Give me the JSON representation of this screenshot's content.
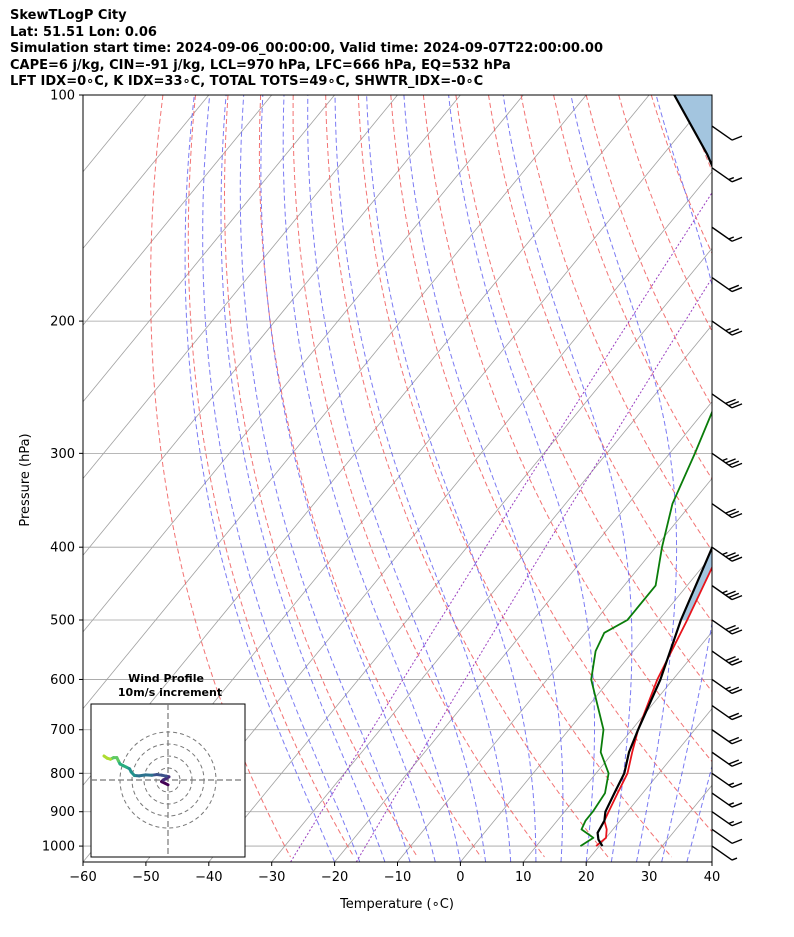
{
  "header": {
    "line1": "SkewTLogP City",
    "line2": "Lat: 51.51   Lon: 0.06",
    "line3": "Simulation start time: 2024-09-06_00:00:00, Valid time: 2024-09-07T22:00:00.00",
    "line4": "CAPE=6 j/kg, CIN=-91 j/kg, LCL=970 hPa, LFC=666 hPa, EQ=532 hPa",
    "line5": "LFT IDX=0∘C, K IDX=33∘C, TOTAL TOTS=49∘C, SHWTR_IDX=-0∘C"
  },
  "colors": {
    "temperature": "#e8141c",
    "dewpoint": "#0a7d0a",
    "parcel": "#000000",
    "cape_fill": "#a3c5df",
    "dry_adiabat": "#f05a5a",
    "moist_adiabat": "#5a5af0",
    "mixing_ratio": "#9a3fc0",
    "isotherm": "#a0a0a0"
  },
  "chart_data": {
    "type": "line",
    "xlabel": "Temperature (∘C)",
    "ylabel": "Pressure (hPa)",
    "xlim": [
      -60,
      40
    ],
    "ylim": [
      1050,
      100
    ],
    "x_ticks": [
      "−60",
      "−50",
      "−40",
      "−30",
      "−20",
      "−10",
      "0",
      "10",
      "20",
      "30",
      "40"
    ],
    "y_ticks": [
      100,
      200,
      300,
      400,
      500,
      600,
      700,
      800,
      900,
      1000
    ],
    "series": [
      {
        "key": "temperature",
        "points": [
          [
            19.5,
            1000
          ],
          [
            20,
            975
          ],
          [
            19,
            950
          ],
          [
            17.5,
            925
          ],
          [
            17,
            900
          ],
          [
            16,
            850
          ],
          [
            15,
            800
          ],
          [
            13,
            750
          ],
          [
            11,
            700
          ],
          [
            7.5,
            600
          ],
          [
            4.5,
            500
          ],
          [
            0.5,
            400
          ],
          [
            -3.5,
            350
          ],
          [
            -6,
            300
          ],
          [
            -9,
            260
          ],
          [
            -10.5,
            240
          ],
          [
            -11,
            230
          ],
          [
            -13,
            200
          ],
          [
            -14,
            190
          ],
          [
            -13,
            180
          ],
          [
            -11,
            160
          ],
          [
            -10,
            145
          ],
          [
            -12,
            130
          ],
          [
            -14,
            120
          ],
          [
            -13,
            110
          ],
          [
            -12,
            100
          ]
        ]
      },
      {
        "key": "dewpoint",
        "points": [
          [
            17,
            1000
          ],
          [
            18,
            975
          ],
          [
            15,
            950
          ],
          [
            14.5,
            925
          ],
          [
            14.5,
            900
          ],
          [
            14,
            850
          ],
          [
            12,
            800
          ],
          [
            8,
            750
          ],
          [
            5.5,
            700
          ],
          [
            -3,
            600
          ],
          [
            -6,
            550
          ],
          [
            -7,
            520
          ],
          [
            -5,
            500
          ],
          [
            -5,
            450
          ],
          [
            -9,
            400
          ],
          [
            -13,
            350
          ],
          [
            -16,
            300
          ],
          [
            -19,
            260
          ],
          [
            -22,
            240
          ],
          [
            -23,
            220
          ],
          [
            -23,
            200
          ],
          [
            -25.5,
            190
          ],
          [
            -30,
            182
          ],
          [
            -32.5,
            175
          ],
          [
            -35,
            160
          ],
          [
            -40,
            140
          ],
          [
            -46,
            120
          ],
          [
            -56,
            100
          ]
        ]
      },
      {
        "key": "parcel",
        "points": [
          [
            20.5,
            1000
          ],
          [
            19,
            980
          ],
          [
            18,
            960
          ],
          [
            17.5,
            925
          ],
          [
            16.5,
            900
          ],
          [
            15.5,
            850
          ],
          [
            14.5,
            800
          ],
          [
            12.5,
            750
          ],
          [
            11,
            700
          ],
          [
            8,
            600
          ],
          [
            3.5,
            500
          ],
          [
            -1,
            400
          ],
          [
            -4,
            350
          ],
          [
            -9,
            300
          ],
          [
            -15,
            260
          ],
          [
            -20,
            230
          ],
          [
            -25,
            200
          ],
          [
            -33,
            170
          ],
          [
            -43,
            140
          ],
          [
            -53,
            120
          ],
          [
            -66,
            100
          ]
        ]
      }
    ],
    "wind_barbs": {
      "pressures": [
        1000,
        950,
        900,
        850,
        800,
        750,
        700,
        650,
        600,
        550,
        500,
        450,
        400,
        350,
        300,
        250,
        200,
        175,
        150,
        125,
        110
      ],
      "speeds_kt": [
        5,
        10,
        15,
        15,
        15,
        20,
        20,
        20,
        25,
        30,
        30,
        35,
        35,
        30,
        35,
        30,
        25,
        20,
        15,
        15,
        10
      ]
    },
    "hodograph": {
      "title": "Wind Profile",
      "subtitle": "10m/s increment",
      "points": [
        [
          0,
          -1.5
        ],
        [
          -1,
          -1
        ],
        [
          -2,
          -0.5
        ],
        [
          -1.5,
          0
        ],
        [
          -0.5,
          0.5
        ],
        [
          0.3,
          1
        ],
        [
          -0.5,
          1.2
        ],
        [
          -2,
          1.5
        ],
        [
          -3.5,
          1.7
        ],
        [
          -5,
          1.5
        ],
        [
          -7,
          1.6
        ],
        [
          -9,
          1.3
        ],
        [
          -10.5,
          1.4
        ],
        [
          -11.5,
          2.5
        ],
        [
          -12,
          3.5
        ],
        [
          -13,
          4
        ],
        [
          -14,
          4.5
        ],
        [
          -15,
          5
        ],
        [
          -15.5,
          6
        ],
        [
          -16,
          7
        ],
        [
          -17,
          7
        ],
        [
          -18,
          6.5
        ],
        [
          -19,
          6.8
        ],
        [
          -20,
          7.5
        ]
      ]
    }
  }
}
